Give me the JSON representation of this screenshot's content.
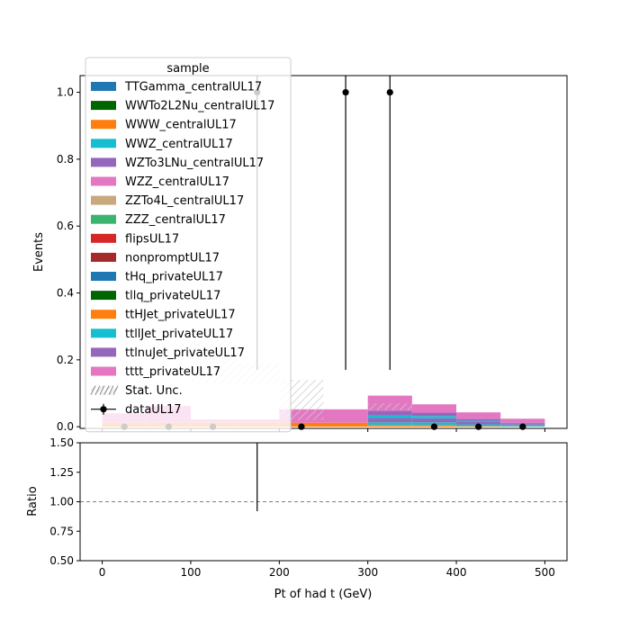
{
  "colors": {
    "TTGamma": "#1f77b4",
    "WWTo2L2Nu": "#006400",
    "WWW": "#ff7f0e",
    "WWZ": "#17becf",
    "WZTo3LNu": "#9467bd",
    "WZZ": "#e377c2",
    "ZZTo4L": "#c8a97e",
    "ZZZ": "#3cb371",
    "flips": "#d62728",
    "nonprompt": "#a52a2a",
    "tHq": "#1f77b4",
    "tllq": "#006400",
    "ttHJet": "#ff7f0e",
    "ttllJet": "#17becf",
    "ttlnuJet": "#9467bd",
    "tttt": "#e377c2"
  },
  "chart_data": [
    {
      "type": "bar",
      "panel": "main",
      "xlabel": "",
      "ylabel": "Events",
      "xlim": [
        -25,
        525
      ],
      "ylim": [
        -0.005,
        1.05
      ],
      "x_ticks": [
        "0",
        "100",
        "200",
        "300",
        "400",
        "500"
      ],
      "y_ticks": [
        "0.0",
        "0.2",
        "0.4",
        "0.6",
        "0.8",
        "1.0"
      ],
      "bin_edges": [
        0,
        50,
        100,
        150,
        200,
        250,
        300,
        350,
        400,
        450,
        500
      ],
      "stack": [
        {
          "name": "WWW_centralUL17",
          "color_key": "WWW",
          "values": [
            0.012,
            0.012,
            0.012,
            0.012,
            0.012,
            0.012,
            0.005,
            0.005,
            0.002,
            0.001
          ]
        },
        {
          "name": "WWZ_centralUL17",
          "color_key": "WWZ",
          "values": [
            0.0,
            0.0,
            0.0,
            0.0,
            0.0,
            0.0,
            0.008,
            0.008,
            0.005,
            0.003
          ]
        },
        {
          "name": "WZTo3LNu_centralUL17",
          "color_key": "WZTo3LNu",
          "values": [
            0.0,
            0.0,
            0.0,
            0.0,
            0.0,
            0.0,
            0.013,
            0.012,
            0.008,
            0.004
          ]
        },
        {
          "name": "ttllJet_privateUL17",
          "color_key": "ttllJet",
          "values": [
            0.0,
            0.0,
            0.0,
            0.0,
            0.0,
            0.0,
            0.007,
            0.007,
            0.003,
            0.002
          ]
        },
        {
          "name": "ttlnuJet_privateUL17",
          "color_key": "ttlnuJet",
          "values": [
            0.0,
            0.0,
            0.0,
            0.0,
            0.0,
            0.0,
            0.015,
            0.01,
            0.005,
            0.002
          ]
        },
        {
          "name": "tttt_privateUL17",
          "color_key": "tttt",
          "values": [
            0.028,
            0.05,
            0.01,
            0.01,
            0.04,
            0.04,
            0.045,
            0.025,
            0.02,
            0.012
          ]
        },
        {
          "name": "ttHJet_privateUL17",
          "color_key": "ttHJet",
          "values": [
            0.0,
            0.0,
            0.0,
            0.0,
            0.0,
            0.0,
            0.0,
            0.0,
            0.0,
            0.0
          ]
        }
      ],
      "hatched_bins": [
        {
          "x0": 100,
          "x1": 150,
          "y0": 0.13,
          "y1": 0.26
        },
        {
          "x0": 150,
          "x1": 200,
          "y0": 0.13,
          "y1": 0.19
        },
        {
          "x0": 200,
          "x1": 250,
          "y0": 0.02,
          "y1": 0.14
        },
        {
          "x0": 300,
          "x1": 350,
          "y0": 0.05,
          "y1": 0.07
        }
      ],
      "data": {
        "name": "dataUL17",
        "x": [
          25,
          75,
          125,
          175,
          225,
          275,
          325,
          375,
          425,
          475
        ],
        "y": [
          0,
          0,
          0,
          1,
          0,
          1,
          1,
          0,
          0,
          0
        ],
        "err_low": [
          0,
          0,
          0,
          0.83,
          0,
          0.83,
          0.83,
          0,
          0,
          0
        ],
        "err_high": [
          0,
          0,
          0,
          2.3,
          0,
          2.3,
          2.3,
          0,
          0,
          0
        ]
      },
      "legend": {
        "title": "sample",
        "placement": "upper-left",
        "entries": [
          {
            "label": "TTGamma_centralUL17",
            "color_key": "TTGamma",
            "kind": "patch"
          },
          {
            "label": "WWTo2L2Nu_centralUL17",
            "color_key": "WWTo2L2Nu",
            "kind": "patch"
          },
          {
            "label": "WWW_centralUL17",
            "color_key": "WWW",
            "kind": "patch"
          },
          {
            "label": "WWZ_centralUL17",
            "color_key": "WWZ",
            "kind": "patch"
          },
          {
            "label": "WZTo3LNu_centralUL17",
            "color_key": "WZTo3LNu",
            "kind": "patch"
          },
          {
            "label": "WZZ_centralUL17",
            "color_key": "WZZ",
            "kind": "patch"
          },
          {
            "label": "ZZTo4L_centralUL17",
            "color_key": "ZZTo4L",
            "kind": "patch"
          },
          {
            "label": "ZZZ_centralUL17",
            "color_key": "ZZZ",
            "kind": "patch"
          },
          {
            "label": "flipsUL17",
            "color_key": "flips",
            "kind": "patch"
          },
          {
            "label": "nonpromptUL17",
            "color_key": "nonprompt",
            "kind": "patch"
          },
          {
            "label": "tHq_privateUL17",
            "color_key": "tHq",
            "kind": "patch"
          },
          {
            "label": "tllq_privateUL17",
            "color_key": "tllq",
            "kind": "patch"
          },
          {
            "label": "ttHJet_privateUL17",
            "color_key": "ttHJet",
            "kind": "patch"
          },
          {
            "label": "ttllJet_privateUL17",
            "color_key": "ttllJet",
            "kind": "patch"
          },
          {
            "label": "ttlnuJet_privateUL17",
            "color_key": "ttlnuJet",
            "kind": "patch"
          },
          {
            "label": "tttt_privateUL17",
            "color_key": "tttt",
            "kind": "patch"
          },
          {
            "label": "Stat. Unc.",
            "color_key": "",
            "kind": "hatch"
          },
          {
            "label": "dataUL17",
            "color_key": "",
            "kind": "errorbar"
          }
        ]
      }
    },
    {
      "type": "scatter",
      "panel": "ratio",
      "xlabel": "Pt of had t (GeV)",
      "ylabel": "Ratio",
      "xlim": [
        -25,
        525
      ],
      "ylim": [
        0.5,
        1.5
      ],
      "x_ticks": [
        "0",
        "100",
        "200",
        "300",
        "400",
        "500"
      ],
      "y_ticks": [
        "0.50",
        "0.75",
        "1.00",
        "1.25",
        "1.50"
      ],
      "reference_line": 1.0,
      "points": [
        {
          "x": 175,
          "y": 1.0,
          "err_low": 0.08,
          "err_high": 0.6
        }
      ]
    }
  ]
}
